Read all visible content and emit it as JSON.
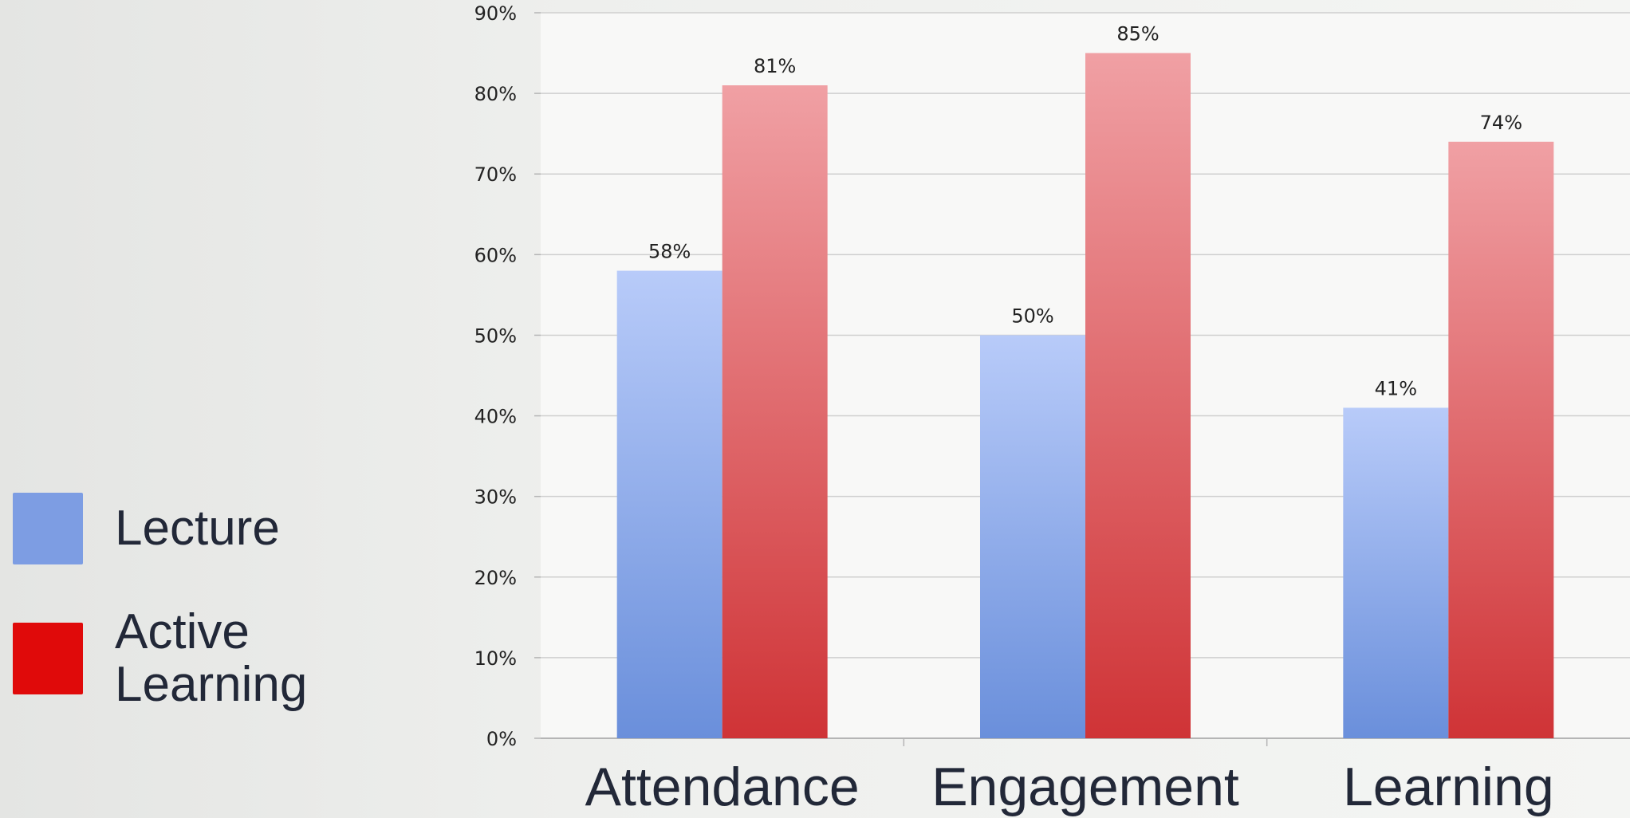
{
  "chart_data": {
    "type": "bar",
    "categories": [
      "Attendance",
      "Engagement",
      "Learning"
    ],
    "series": [
      {
        "name": "Lecture",
        "values": [
          58,
          50,
          41
        ],
        "color": "#7d9de3"
      },
      {
        "name": "Active\nLearning",
        "values": [
          81,
          85,
          74
        ],
        "color": "#e00a0a"
      }
    ],
    "data_labels": [
      [
        "58%",
        "50%",
        "41%"
      ],
      [
        "81%",
        "85%",
        "74%"
      ]
    ],
    "ylim": [
      0,
      90
    ],
    "yticks": [
      "0%",
      "10%",
      "20%",
      "30%",
      "40%",
      "50%",
      "60%",
      "70%",
      "80%",
      "90%"
    ],
    "grid": true,
    "legend": "left"
  }
}
